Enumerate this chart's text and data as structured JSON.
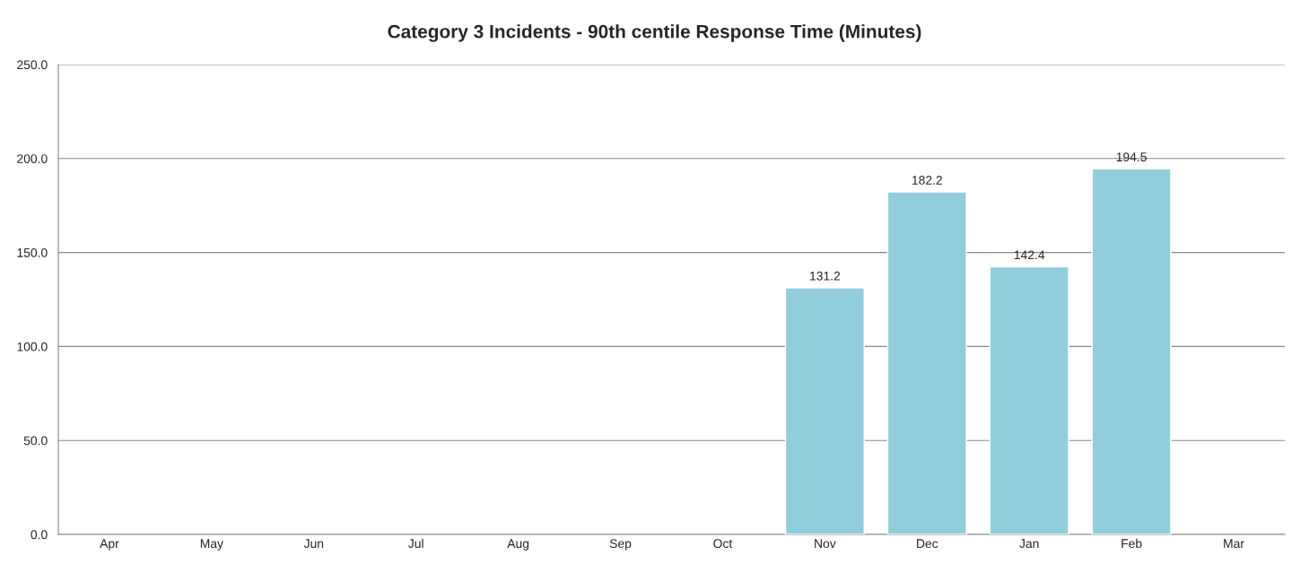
{
  "chart_data": {
    "type": "bar",
    "title": "Category 3 Incidents - 90th centile Response Time (Minutes)",
    "categories": [
      "Apr",
      "May",
      "Jun",
      "Jul",
      "Aug",
      "Sep",
      "Oct",
      "Nov",
      "Dec",
      "Jan",
      "Feb",
      "Mar"
    ],
    "values": [
      null,
      null,
      null,
      null,
      null,
      null,
      null,
      131.2,
      182.2,
      142.4,
      194.5,
      null
    ],
    "color": "#92cddc",
    "ylim": [
      0,
      250
    ],
    "yticks": [
      {
        "value": 0,
        "label": "0.0"
      },
      {
        "value": 50,
        "label": "50.0"
      },
      {
        "value": 100,
        "label": "100.0"
      },
      {
        "value": 150,
        "label": "150.0"
      },
      {
        "value": 200,
        "label": "200.0"
      },
      {
        "value": 250,
        "label": "250.0"
      }
    ],
    "grid": "y",
    "data_labels": true,
    "legend": false
  }
}
